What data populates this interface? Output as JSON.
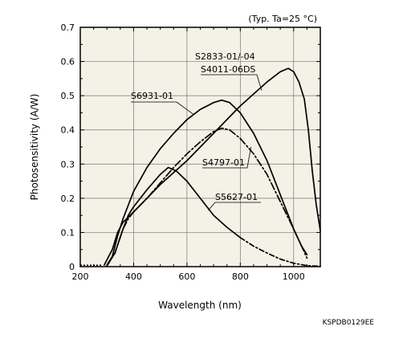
{
  "chart_data": {
    "type": "line",
    "title": "",
    "condition_note": "(Typ. Ta=25 °C)",
    "xlabel": "Wavelength (nm)",
    "ylabel": "Photosensitivity (A/W)",
    "xlim": [
      200,
      1100
    ],
    "ylim": [
      0,
      0.7
    ],
    "xticks": [
      200,
      400,
      600,
      800,
      1000
    ],
    "yticks": [
      0,
      0.1,
      0.2,
      0.3,
      0.4,
      0.5,
      0.6,
      0.7
    ],
    "ytick_labels": [
      "0",
      "0.1",
      "0.2",
      "0.3",
      "0.4",
      "0.5",
      "0.6",
      "0.7"
    ],
    "xtick_minor_step": 50,
    "ytick_minor_step": 0.05,
    "grid": true,
    "doc_code": "KSPDB0129EE",
    "series": [
      {
        "name": "S2833-01/-04\nS4011-06DS",
        "style": "solid",
        "points": [
          [
            290,
            0.005
          ],
          [
            320,
            0.05
          ],
          [
            340,
            0.1
          ],
          [
            360,
            0.13
          ],
          [
            380,
            0.145
          ],
          [
            400,
            0.16
          ],
          [
            450,
            0.2
          ],
          [
            500,
            0.24
          ],
          [
            550,
            0.275
          ],
          [
            600,
            0.31
          ],
          [
            650,
            0.35
          ],
          [
            700,
            0.39
          ],
          [
            750,
            0.43
          ],
          [
            800,
            0.47
          ],
          [
            850,
            0.505
          ],
          [
            900,
            0.54
          ],
          [
            950,
            0.57
          ],
          [
            980,
            0.58
          ],
          [
            1000,
            0.57
          ],
          [
            1020,
            0.54
          ],
          [
            1040,
            0.49
          ],
          [
            1055,
            0.4
          ],
          [
            1070,
            0.28
          ],
          [
            1085,
            0.18
          ],
          [
            1100,
            0.105
          ]
        ]
      },
      {
        "name": "S6931-01",
        "style": "solid",
        "points": [
          [
            300,
            0.005
          ],
          [
            320,
            0.03
          ],
          [
            340,
            0.09
          ],
          [
            360,
            0.14
          ],
          [
            380,
            0.18
          ],
          [
            400,
            0.22
          ],
          [
            450,
            0.29
          ],
          [
            500,
            0.345
          ],
          [
            550,
            0.39
          ],
          [
            600,
            0.43
          ],
          [
            650,
            0.46
          ],
          [
            700,
            0.48
          ],
          [
            730,
            0.487
          ],
          [
            760,
            0.48
          ],
          [
            800,
            0.45
          ],
          [
            850,
            0.39
          ],
          [
            900,
            0.31
          ],
          [
            950,
            0.21
          ],
          [
            1000,
            0.11
          ],
          [
            1030,
            0.06
          ],
          [
            1050,
            0.035
          ]
        ]
      },
      {
        "name": "S4797-01",
        "style": "dashdot",
        "points": [
          [
            300,
            0.002
          ],
          [
            330,
            0.04
          ],
          [
            360,
            0.11
          ],
          [
            380,
            0.14
          ],
          [
            400,
            0.16
          ],
          [
            450,
            0.2
          ],
          [
            500,
            0.245
          ],
          [
            550,
            0.29
          ],
          [
            600,
            0.33
          ],
          [
            650,
            0.365
          ],
          [
            700,
            0.395
          ],
          [
            730,
            0.405
          ],
          [
            760,
            0.4
          ],
          [
            800,
            0.375
          ],
          [
            850,
            0.33
          ],
          [
            900,
            0.27
          ],
          [
            950,
            0.19
          ],
          [
            1000,
            0.11
          ],
          [
            1030,
            0.06
          ],
          [
            1050,
            0.025
          ]
        ]
      },
      {
        "name": "S5627-01",
        "style": "solid-then-dashed",
        "points": [
          [
            300,
            0.002
          ],
          [
            330,
            0.04
          ],
          [
            360,
            0.11
          ],
          [
            380,
            0.15
          ],
          [
            400,
            0.175
          ],
          [
            450,
            0.225
          ],
          [
            500,
            0.27
          ],
          [
            530,
            0.29
          ],
          [
            560,
            0.28
          ],
          [
            600,
            0.25
          ],
          [
            650,
            0.2
          ],
          [
            700,
            0.15
          ],
          [
            750,
            0.115
          ],
          [
            800,
            0.085
          ],
          [
            850,
            0.06
          ],
          [
            900,
            0.04
          ],
          [
            950,
            0.022
          ],
          [
            1000,
            0.01
          ],
          [
            1050,
            0.003
          ],
          [
            1100,
            0.001
          ]
        ]
      }
    ],
    "annotations": [
      {
        "label": "S2833-01/-04",
        "series": 0
      },
      {
        "label": "S4011-06DS",
        "series": 0
      },
      {
        "label": "S6931-01",
        "series": 1
      },
      {
        "label": "S4797-01",
        "series": 2
      },
      {
        "label": "S5627-01",
        "series": 3
      }
    ]
  },
  "cutoff_ref": {
    "points": [
      [
        200,
        0.004
      ],
      [
        280,
        0.004
      ]
    ]
  }
}
